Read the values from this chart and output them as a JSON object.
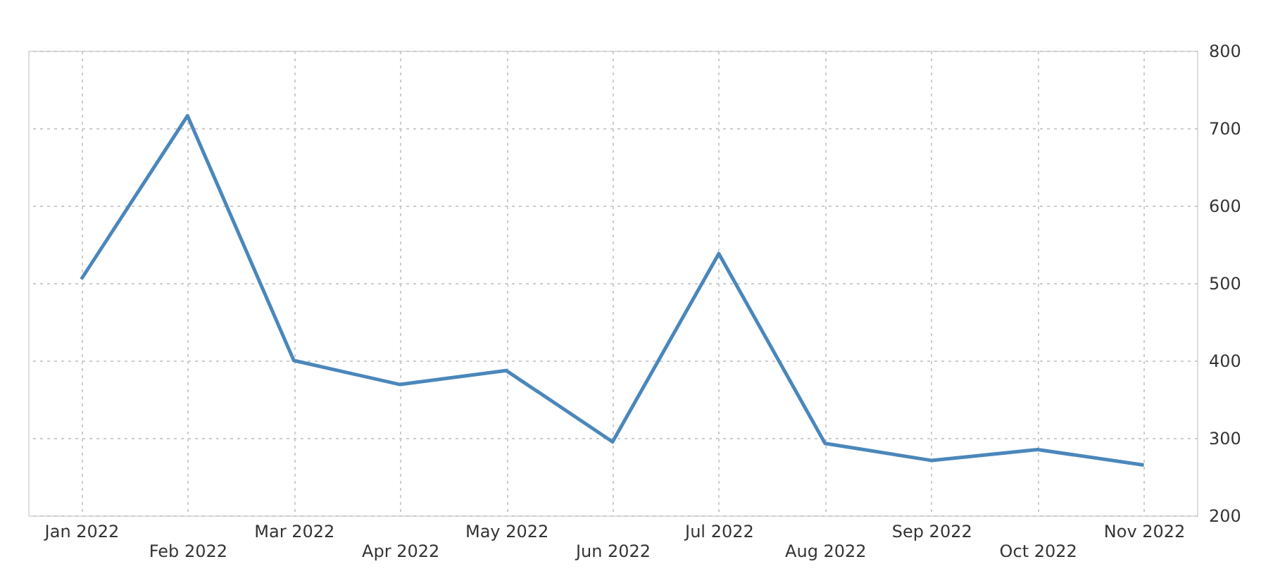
{
  "chart_data": {
    "type": "line",
    "categories": [
      "Jan 2022",
      "Feb 2022",
      "Mar 2022",
      "Apr 2022",
      "May 2022",
      "Jun 2022",
      "Jul 2022",
      "Aug 2022",
      "Sep 2022",
      "Oct 2022",
      "Nov 2022"
    ],
    "series": [
      {
        "color": "#4a87bb",
        "values": [
          505,
          716,
          400,
          369,
          387,
          295,
          538,
          293,
          271,
          285,
          265
        ]
      }
    ],
    "ylim": [
      200,
      800
    ],
    "yticks": [
      200,
      300,
      400,
      500,
      600,
      700,
      800
    ],
    "grid": true,
    "marker": "none",
    "line_style": "solid"
  }
}
